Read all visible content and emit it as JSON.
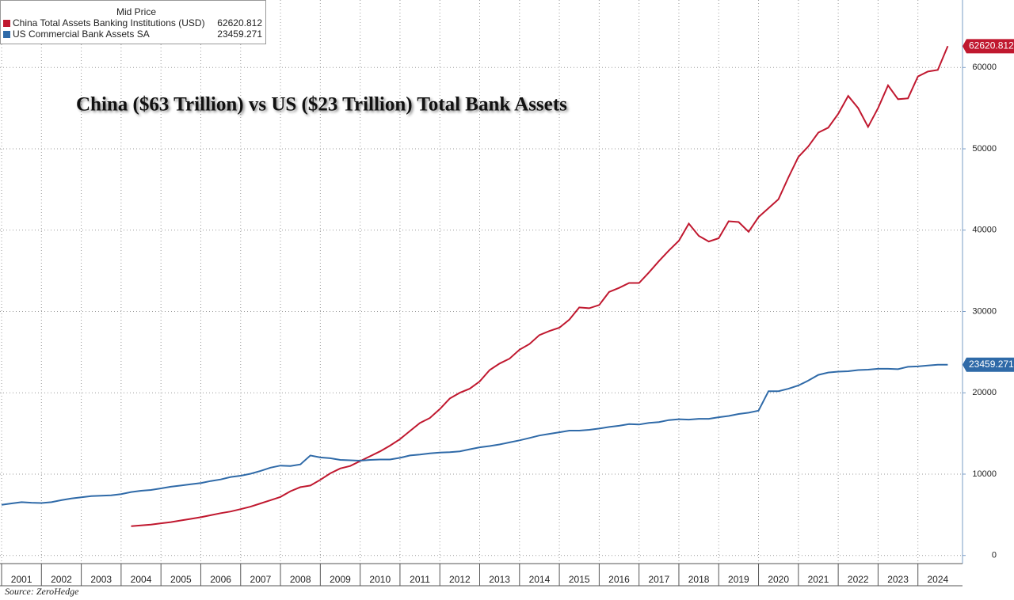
{
  "chart_data": {
    "type": "line",
    "title": "China ($63 Trillion) vs US ($23 Trillion) Total Bank Assets",
    "legend_title": "Mid Price",
    "source": "Source: ZeroHedge",
    "xlim": [
      2000.96,
      2025.02
    ],
    "xticks": [
      2001,
      2002,
      2003,
      2004,
      2005,
      2006,
      2007,
      2008,
      2009,
      2010,
      2011,
      2012,
      2013,
      2014,
      2015,
      2016,
      2017,
      2018,
      2019,
      2020,
      2021,
      2022,
      2023,
      2024
    ],
    "ylim": [
      -1000,
      68300
    ],
    "yticks": [
      0,
      10000,
      20000,
      30000,
      40000,
      50000,
      60000
    ],
    "grid": true,
    "series": [
      {
        "name": "China Total Assets Banking Institutions (USD)",
        "color": "#c0182f",
        "x": [
          2004.25,
          2004.5,
          2004.75,
          2005,
          2005.25,
          2005.5,
          2005.75,
          2006,
          2006.25,
          2006.5,
          2006.75,
          2007,
          2007.25,
          2007.5,
          2007.75,
          2008,
          2008.25,
          2008.5,
          2008.75,
          2009,
          2009.25,
          2009.5,
          2009.75,
          2010,
          2010.25,
          2010.5,
          2010.75,
          2011,
          2011.25,
          2011.5,
          2011.75,
          2012,
          2012.25,
          2012.5,
          2012.75,
          2013,
          2013.25,
          2013.5,
          2013.75,
          2014,
          2014.25,
          2014.5,
          2014.75,
          2015,
          2015.25,
          2015.5,
          2015.75,
          2016,
          2016.25,
          2016.5,
          2016.75,
          2017,
          2017.25,
          2017.5,
          2017.75,
          2018,
          2018.25,
          2018.5,
          2018.75,
          2019,
          2019.25,
          2019.5,
          2019.75,
          2020,
          2020.25,
          2020.5,
          2020.75,
          2021,
          2021.25,
          2021.5,
          2021.75,
          2022,
          2022.25,
          2022.5,
          2022.75,
          2023,
          2023.25,
          2023.5,
          2023.75,
          2024,
          2024.25,
          2024.5,
          2024.75
        ],
        "values": [
          3600,
          3700,
          3800,
          3950,
          4100,
          4300,
          4500,
          4700,
          4950,
          5200,
          5400,
          5700,
          6000,
          6400,
          6800,
          7200,
          7900,
          8400,
          8600,
          9300,
          10100,
          10700,
          11000,
          11600,
          12200,
          12800,
          13500,
          14300,
          15300,
          16300,
          16900,
          18000,
          19300,
          20000,
          20500,
          21400,
          22800,
          23600,
          24200,
          25300,
          26000,
          27100,
          27600,
          28000,
          29000,
          30500,
          30400,
          30800,
          32400,
          32900,
          33500,
          33500,
          34800,
          36200,
          37500,
          38700,
          40800,
          39300,
          38600,
          39000,
          41100,
          41000,
          39800,
          41600,
          42700,
          43800,
          46500,
          49000,
          50300,
          52000,
          52600,
          54300,
          56500,
          55000,
          52700,
          55000,
          57800,
          56100,
          56200,
          58900,
          59500,
          59700,
          62620.812
        ]
      },
      {
        "name": "US Commercial Bank Assets SA",
        "color": "#2f6aa8",
        "x": [
          2001,
          2001.25,
          2001.5,
          2001.75,
          2002,
          2002.25,
          2002.5,
          2002.75,
          2003,
          2003.25,
          2003.5,
          2003.75,
          2004,
          2004.25,
          2004.5,
          2004.75,
          2005,
          2005.25,
          2005.5,
          2005.75,
          2006,
          2006.25,
          2006.5,
          2006.75,
          2007,
          2007.25,
          2007.5,
          2007.75,
          2008,
          2008.25,
          2008.5,
          2008.75,
          2009,
          2009.25,
          2009.5,
          2009.75,
          2010,
          2010.25,
          2010.5,
          2010.75,
          2011,
          2011.25,
          2011.5,
          2011.75,
          2012,
          2012.25,
          2012.5,
          2012.75,
          2013,
          2013.25,
          2013.5,
          2013.75,
          2014,
          2014.25,
          2014.5,
          2014.75,
          2015,
          2015.25,
          2015.5,
          2015.75,
          2016,
          2016.25,
          2016.5,
          2016.75,
          2017,
          2017.25,
          2017.5,
          2017.75,
          2018,
          2018.25,
          2018.5,
          2018.75,
          2019,
          2019.25,
          2019.5,
          2019.75,
          2020,
          2020.25,
          2020.5,
          2020.75,
          2021,
          2021.25,
          2021.5,
          2021.75,
          2022,
          2022.25,
          2022.5,
          2022.75,
          2023,
          2023.25,
          2023.5,
          2023.75,
          2024,
          2024.25,
          2024.5,
          2024.75
        ],
        "values": [
          6230,
          6400,
          6550,
          6480,
          6450,
          6550,
          6800,
          7000,
          7150,
          7300,
          7350,
          7400,
          7550,
          7800,
          7950,
          8050,
          8250,
          8450,
          8600,
          8750,
          8900,
          9150,
          9350,
          9650,
          9800,
          10050,
          10400,
          10800,
          11050,
          11000,
          11200,
          12300,
          12050,
          11950,
          11750,
          11700,
          11650,
          11750,
          11800,
          11800,
          12000,
          12300,
          12400,
          12550,
          12650,
          12700,
          12800,
          13050,
          13300,
          13450,
          13650,
          13900,
          14150,
          14450,
          14750,
          14950,
          15150,
          15350,
          15350,
          15450,
          15600,
          15800,
          15950,
          16150,
          16100,
          16300,
          16400,
          16650,
          16750,
          16700,
          16800,
          16800,
          17000,
          17150,
          17400,
          17550,
          17800,
          20200,
          20200,
          20500,
          20900,
          21500,
          22200,
          22500,
          22600,
          22650,
          22800,
          22850,
          22950,
          22950,
          22900,
          23200,
          23250,
          23350,
          23460,
          23459.271
        ]
      }
    ]
  }
}
